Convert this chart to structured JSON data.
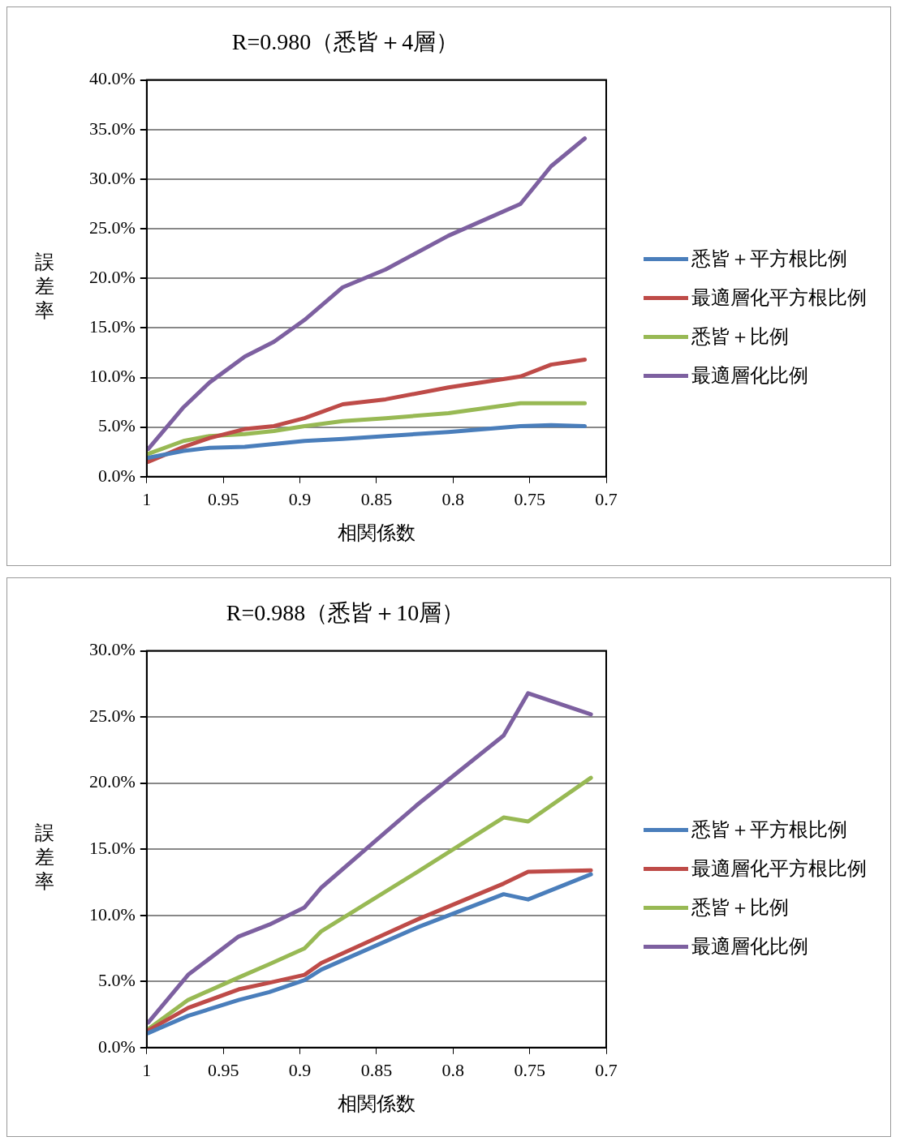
{
  "chart_data": [
    {
      "type": "line",
      "title": "R=0.980（悉皆＋4層）",
      "xlabel": "相関係数",
      "ylabel": "誤差率",
      "x": [
        0.999,
        0.976,
        0.959,
        0.936,
        0.917,
        0.897,
        0.872,
        0.844,
        0.803,
        0.756,
        0.736,
        0.714
      ],
      "xlim": [
        1,
        0.7
      ],
      "xticks": [
        1,
        0.95,
        0.9,
        0.85,
        0.8,
        0.75,
        0.7
      ],
      "ylim": [
        0,
        40
      ],
      "yticks": [
        {
          "value": 0,
          "label": "0.0%"
        },
        {
          "value": 5,
          "label": "5.0%"
        },
        {
          "value": 10,
          "label": "10.0%"
        },
        {
          "value": 15,
          "label": "15.0%"
        },
        {
          "value": 20,
          "label": "20.0%"
        },
        {
          "value": 25,
          "label": "25.0%"
        },
        {
          "value": 30,
          "label": "30.0%"
        },
        {
          "value": 35,
          "label": "35.0%"
        },
        {
          "value": 40,
          "label": "40.0%"
        }
      ],
      "grid": "y",
      "legend": "right",
      "marker": "none",
      "line_style": "solid",
      "series": [
        {
          "name": "悉皆＋平方根比例",
          "color": "#4a7ebb",
          "values": [
            1.9,
            2.6,
            2.9,
            3.0,
            3.3,
            3.6,
            3.8,
            4.1,
            4.5,
            5.1,
            5.2,
            5.1
          ]
        },
        {
          "name": "最適層化平方根比例",
          "color": "#be4b48",
          "values": [
            1.5,
            3.0,
            3.9,
            4.8,
            5.1,
            5.9,
            7.3,
            7.8,
            9.0,
            10.1,
            11.3,
            11.8
          ]
        },
        {
          "name": "悉皆＋比例",
          "color": "#98b954",
          "values": [
            2.3,
            3.6,
            4.1,
            4.3,
            4.6,
            5.1,
            5.6,
            5.9,
            6.4,
            7.4,
            7.4,
            7.4
          ]
        },
        {
          "name": "最適層化比例",
          "color": "#7d60a0",
          "values": [
            2.8,
            7.0,
            9.5,
            12.1,
            13.6,
            15.8,
            19.1,
            20.9,
            24.3,
            27.5,
            31.3,
            34.1
          ]
        }
      ]
    },
    {
      "type": "line",
      "title": "R=0.988（悉皆＋10層）",
      "xlabel": "相関係数",
      "ylabel": "誤差率",
      "x": [
        0.999,
        0.973,
        0.94,
        0.92,
        0.897,
        0.886,
        0.823,
        0.767,
        0.751,
        0.71
      ],
      "xlim": [
        1,
        0.7
      ],
      "xticks": [
        1,
        0.95,
        0.9,
        0.85,
        0.8,
        0.75,
        0.7
      ],
      "ylim": [
        0,
        30
      ],
      "yticks": [
        {
          "value": 0,
          "label": "0.0%"
        },
        {
          "value": 5,
          "label": "5.0%"
        },
        {
          "value": 10,
          "label": "10.0%"
        },
        {
          "value": 15,
          "label": "15.0%"
        },
        {
          "value": 20,
          "label": "20.0%"
        },
        {
          "value": 25,
          "label": "25.0%"
        },
        {
          "value": 30,
          "label": "30.0%"
        }
      ],
      "grid": "y",
      "legend": "right",
      "marker": "none",
      "line_style": "solid",
      "series": [
        {
          "name": "悉皆＋平方根比例",
          "color": "#4a7ebb",
          "values": [
            1.1,
            2.4,
            3.6,
            4.2,
            5.1,
            5.9,
            9.1,
            11.6,
            11.2,
            13.1
          ]
        },
        {
          "name": "最適層化平方根比例",
          "color": "#be4b48",
          "values": [
            1.3,
            3.0,
            4.4,
            4.9,
            5.5,
            6.4,
            9.7,
            12.4,
            13.3,
            13.4
          ]
        },
        {
          "name": "悉皆＋比例",
          "color": "#98b954",
          "values": [
            1.4,
            3.6,
            5.3,
            6.3,
            7.5,
            8.8,
            13.3,
            17.4,
            17.1,
            20.4
          ]
        },
        {
          "name": "最適層化比例",
          "color": "#7d60a0",
          "values": [
            1.9,
            5.5,
            8.4,
            9.3,
            10.6,
            12.1,
            18.4,
            23.6,
            26.8,
            25.2
          ]
        }
      ]
    }
  ]
}
